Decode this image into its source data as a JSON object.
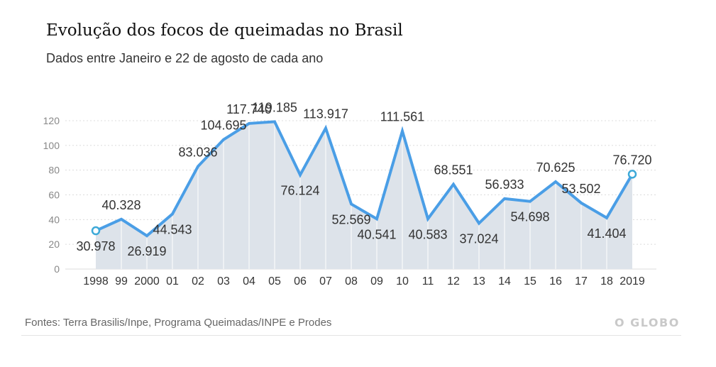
{
  "header": {
    "title": "Evolução dos focos de queimadas no Brasil",
    "subtitle": "Dados entre Janeiro e 22 de agosto de cada ano"
  },
  "footer": {
    "source": "Fontes: Terra Brasilis/Inpe, Programa Queimadas/INPE e Prodes",
    "logo": "O GLOBO"
  },
  "colors": {
    "line": "#4a9ee6",
    "area": "#dde3ea",
    "grid": "#dcdcdc",
    "marker_fill": "#ffffff",
    "marker_stroke": "#3da9d8"
  },
  "chart_data": {
    "type": "area",
    "title": "Evolução dos focos de queimadas no Brasil",
    "subtitle": "Dados entre Janeiro e 22 de agosto de cada ano",
    "xlabel": "",
    "ylabel": "",
    "categories": [
      "1998",
      "99",
      "2000",
      "01",
      "02",
      "03",
      "04",
      "05",
      "06",
      "07",
      "08",
      "09",
      "10",
      "11",
      "12",
      "13",
      "14",
      "15",
      "16",
      "17",
      "18",
      "2019"
    ],
    "values": [
      30978,
      40328,
      26919,
      44543,
      83036,
      104695,
      117740,
      119185,
      76124,
      113917,
      52569,
      40541,
      111561,
      40583,
      68551,
      37024,
      56933,
      54698,
      70625,
      53502,
      41404,
      76720
    ],
    "data_labels": [
      "30.978",
      "40.328",
      "26.919",
      "44.543",
      "83.036",
      "104.695",
      "117.740",
      "119.185",
      "76.124",
      "113.917",
      "52.569",
      "40.541",
      "111.561",
      "40.583",
      "68.551",
      "37.024",
      "56.933",
      "54.698",
      "70.625",
      "53.502",
      "41.404",
      "76.720"
    ],
    "label_position": [
      "below",
      "above",
      "below",
      "below",
      "above",
      "above",
      "above",
      "above",
      "below",
      "above",
      "below",
      "below",
      "above",
      "below",
      "above",
      "below",
      "above",
      "below",
      "above",
      "above",
      "below",
      "above"
    ],
    "marked_points": [
      0,
      21
    ],
    "yticks": [
      "0",
      "20",
      "40",
      "60",
      "80",
      "100",
      "120"
    ],
    "ytick_values": [
      0,
      20000,
      40000,
      60000,
      80000,
      100000,
      120000
    ],
    "ylim": [
      0,
      120000
    ],
    "grid": true,
    "legend": "none"
  }
}
